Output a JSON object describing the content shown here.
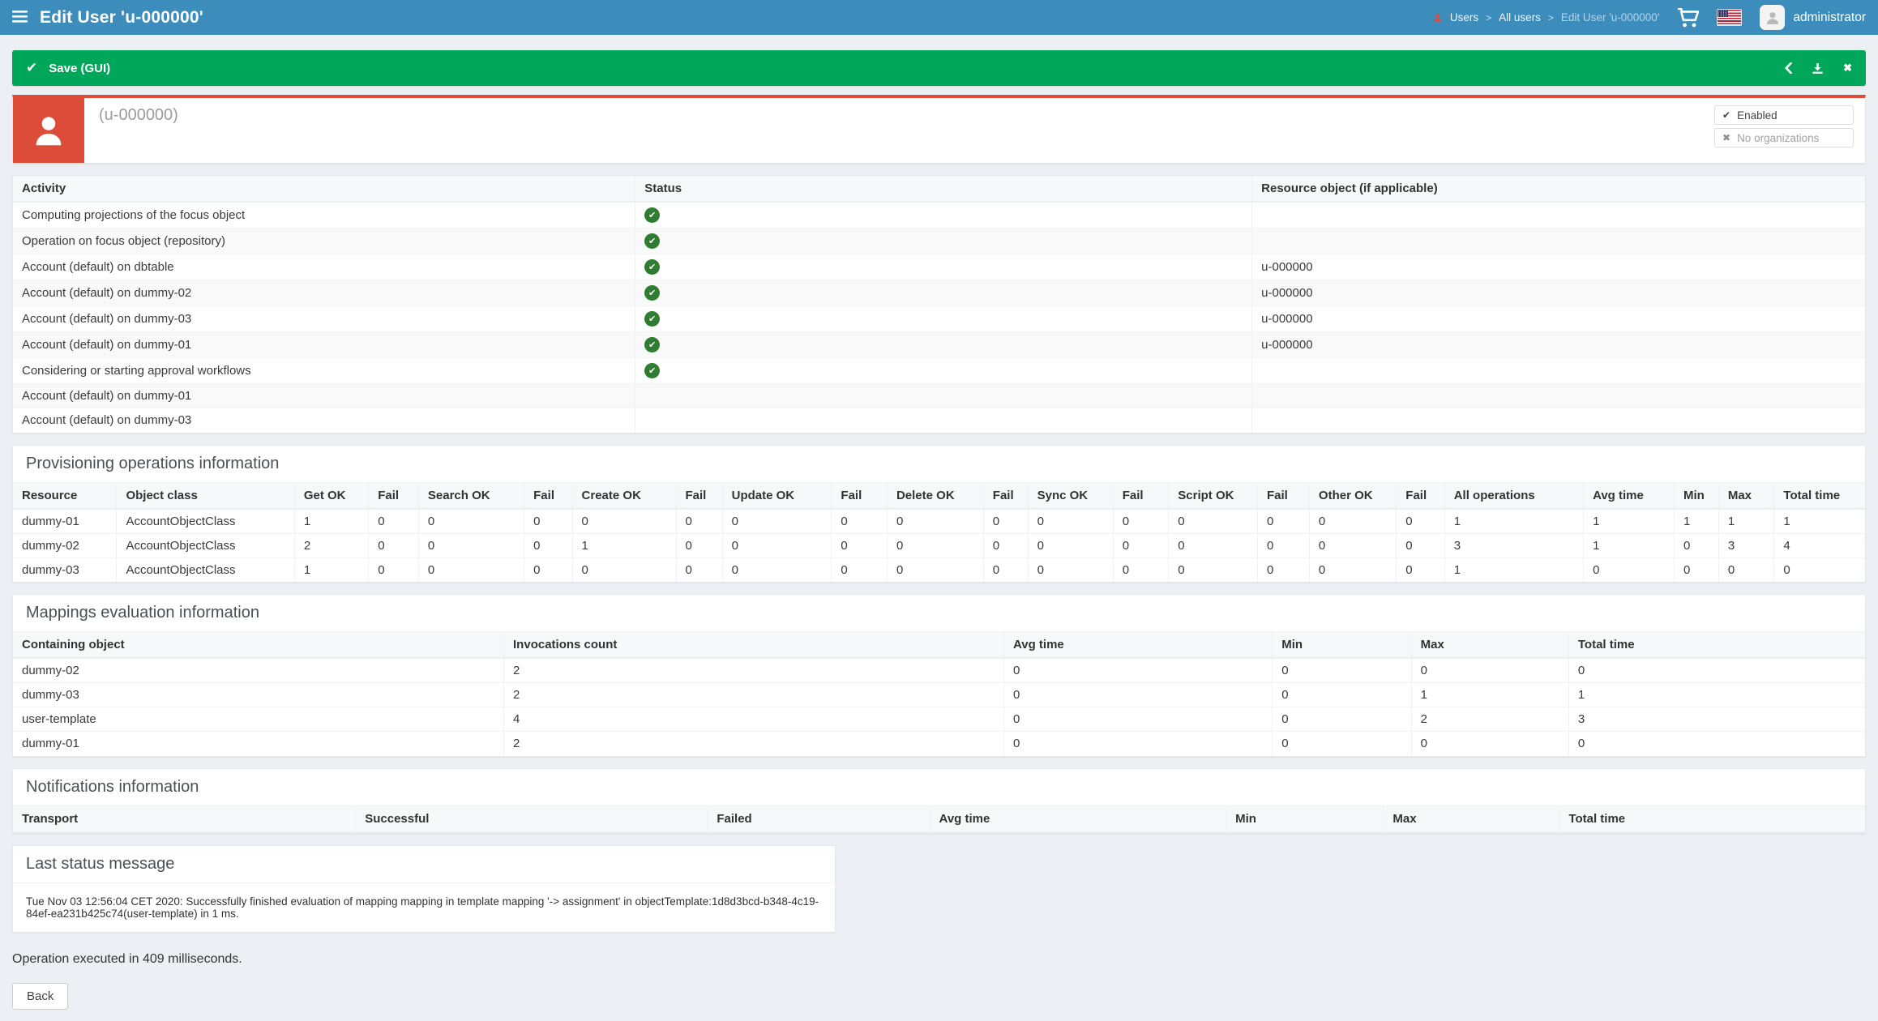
{
  "header": {
    "title": "Edit User 'u-000000'",
    "breadcrumb": [
      "Users",
      "All users",
      "Edit User 'u-000000'"
    ],
    "username": "administrator"
  },
  "result_bar": {
    "label": "Save (GUI)"
  },
  "summary": {
    "display_name": "(u-000000)",
    "tags": [
      {
        "icon": "check",
        "label": "Enabled",
        "muted": false
      },
      {
        "icon": "cross",
        "label": "No organizations",
        "muted": true
      }
    ]
  },
  "activity": {
    "columns": [
      "Activity",
      "Status",
      "Resource object (if applicable)"
    ],
    "rows": [
      {
        "activity": "Computing projections of the focus object",
        "status": "success",
        "resource": ""
      },
      {
        "activity": "Operation on focus object (repository)",
        "status": "success",
        "resource": ""
      },
      {
        "activity": "Account (default) on dbtable",
        "status": "success",
        "resource": "u-000000"
      },
      {
        "activity": "Account (default) on dummy-02",
        "status": "success",
        "resource": "u-000000"
      },
      {
        "activity": "Account (default) on dummy-03",
        "status": "success",
        "resource": "u-000000"
      },
      {
        "activity": "Account (default) on dummy-01",
        "status": "success",
        "resource": "u-000000"
      },
      {
        "activity": "Considering or starting approval workflows",
        "status": "success",
        "resource": ""
      },
      {
        "activity": "Account (default) on dummy-01",
        "status": "none",
        "resource": ""
      },
      {
        "activity": "Account (default) on dummy-03",
        "status": "none",
        "resource": ""
      }
    ]
  },
  "provisioning": {
    "title": "Provisioning operations information",
    "columns": [
      "Resource",
      "Object class",
      "Get OK",
      "Fail",
      "Search OK",
      "Fail",
      "Create OK",
      "Fail",
      "Update OK",
      "Fail",
      "Delete OK",
      "Fail",
      "Sync OK",
      "Fail",
      "Script OK",
      "Fail",
      "Other OK",
      "Fail",
      "All operations",
      "Avg time",
      "Min",
      "Max",
      "Total time"
    ],
    "rows": [
      [
        "dummy-01",
        "AccountObjectClass",
        "1",
        "0",
        "0",
        "0",
        "0",
        "0",
        "0",
        "0",
        "0",
        "0",
        "0",
        "0",
        "0",
        "0",
        "0",
        "0",
        "1",
        "1",
        "1",
        "1",
        "1"
      ],
      [
        "dummy-02",
        "AccountObjectClass",
        "2",
        "0",
        "0",
        "0",
        "1",
        "0",
        "0",
        "0",
        "0",
        "0",
        "0",
        "0",
        "0",
        "0",
        "0",
        "0",
        "3",
        "1",
        "0",
        "3",
        "4"
      ],
      [
        "dummy-03",
        "AccountObjectClass",
        "1",
        "0",
        "0",
        "0",
        "0",
        "0",
        "0",
        "0",
        "0",
        "0",
        "0",
        "0",
        "0",
        "0",
        "0",
        "0",
        "1",
        "0",
        "0",
        "0",
        "0"
      ]
    ]
  },
  "mappings": {
    "title": "Mappings evaluation information",
    "columns": [
      "Containing object",
      "Invocations count",
      "Avg time",
      "Min",
      "Max",
      "Total time"
    ],
    "rows": [
      [
        "dummy-02",
        "2",
        "0",
        "0",
        "0",
        "0"
      ],
      [
        "dummy-03",
        "2",
        "0",
        "0",
        "1",
        "1"
      ],
      [
        "user-template",
        "4",
        "0",
        "0",
        "2",
        "3"
      ],
      [
        "dummy-01",
        "2",
        "0",
        "0",
        "0",
        "0"
      ]
    ]
  },
  "notifications": {
    "title": "Notifications information",
    "columns": [
      "Transport",
      "Successful",
      "Failed",
      "Avg time",
      "Min",
      "Max",
      "Total time"
    ],
    "rows": []
  },
  "last_status": {
    "title": "Last status message",
    "message": "Tue Nov 03 12:56:04 CET 2020: Successfully finished evaluation of mapping mapping in template mapping '-> assignment' in objectTemplate:1d8d3bcd-b348-4c19-84ef-ea231b425c74(user-template) in 1 ms."
  },
  "footer": {
    "operation_text": "Operation executed in 409 milliseconds.",
    "back_label": "Back"
  },
  "icons": {
    "check": "✔",
    "cross": "✖",
    "status_success": "✔",
    "close": "✖"
  },
  "colors": {
    "header_bg": "#3c8dbc",
    "success_bar": "#00a65a",
    "summary_accent": "#dd4b39",
    "status_icon": "#2e7d32",
    "page_bg": "#ecf0f5"
  }
}
